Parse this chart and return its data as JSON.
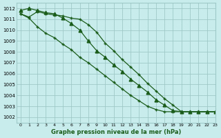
{
  "background_color": "#c8ecec",
  "grid_color": "#a0c8c8",
  "line_color": "#1a5c1a",
  "xlabel": "Graphe pression niveau de la mer (hPa)",
  "xlim": [
    -0.5,
    23
  ],
  "ylim": [
    1001.5,
    1012.5
  ],
  "yticks": [
    1002,
    1003,
    1004,
    1005,
    1006,
    1007,
    1008,
    1009,
    1010,
    1011,
    1012
  ],
  "xticks": [
    0,
    1,
    2,
    3,
    4,
    5,
    6,
    7,
    8,
    9,
    10,
    11,
    12,
    13,
    14,
    15,
    16,
    17,
    18,
    19,
    20,
    21,
    22,
    23
  ],
  "series": [
    {
      "x": [
        0,
        1,
        2,
        3,
        4,
        5,
        6,
        7,
        8,
        9,
        10,
        11,
        12,
        13,
        14,
        15,
        16,
        17,
        18,
        19,
        20,
        21,
        22,
        23
      ],
      "y": [
        1011.5,
        1011.1,
        1010.3,
        1009.7,
        1009.3,
        1008.7,
        1008.2,
        1007.5,
        1007.0,
        1006.4,
        1005.8,
        1005.2,
        1004.6,
        1004.0,
        1003.5,
        1003.0,
        1002.7,
        1002.5,
        1002.5,
        1002.5,
        1002.5,
        1002.5,
        1002.5,
        1002.5
      ],
      "marker": "+"
    },
    {
      "x": [
        0,
        1,
        2,
        3,
        4,
        5,
        6,
        7,
        8,
        9,
        10,
        11,
        12,
        13,
        14,
        15,
        16,
        17,
        18,
        19,
        20,
        21,
        22,
        23
      ],
      "y": [
        1011.8,
        1012.0,
        1011.8,
        1011.6,
        1011.5,
        1011.1,
        1010.6,
        1010.0,
        1009.0,
        1008.1,
        1007.5,
        1006.8,
        1006.2,
        1005.5,
        1004.9,
        1004.3,
        1003.6,
        1003.1,
        1002.6,
        1002.5,
        1002.5,
        1002.5,
        1002.5,
        1002.5
      ],
      "marker": "+"
    },
    {
      "x": [
        0,
        1,
        2,
        3,
        4,
        5,
        6,
        7,
        8,
        9,
        10,
        11,
        12,
        13,
        14,
        15,
        16,
        17,
        18,
        19,
        20,
        21,
        22,
        23
      ],
      "y": [
        1011.5,
        1011.2,
        1011.7,
        1011.5,
        1011.4,
        1011.3,
        1011.1,
        1011.0,
        1010.5,
        1009.8,
        1008.8,
        1008.1,
        1007.3,
        1006.6,
        1005.9,
        1005.1,
        1004.4,
        1003.7,
        1003.1,
        1002.5,
        1002.5,
        1002.5,
        1002.5,
        1002.5
      ],
      "marker": "+"
    }
  ]
}
